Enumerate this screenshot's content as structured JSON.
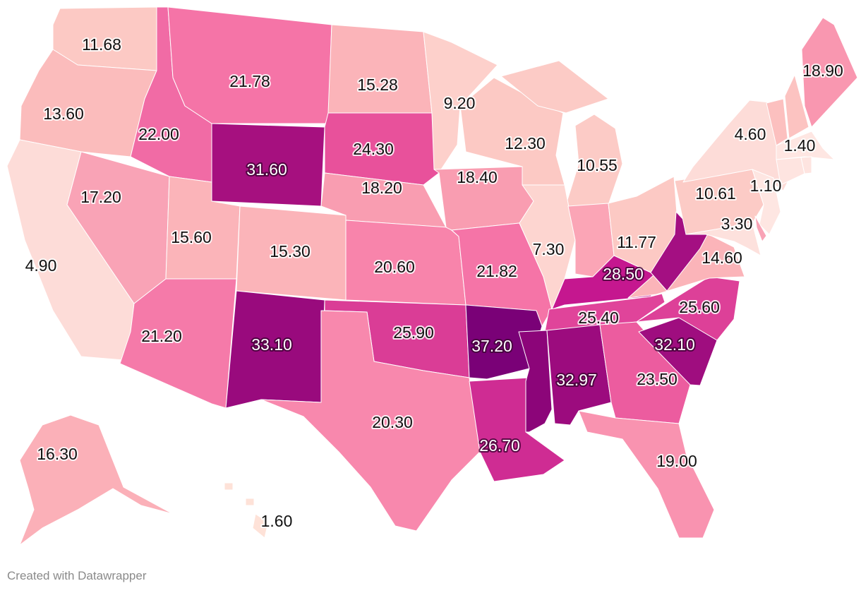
{
  "footer": "Created with Datawrapper",
  "color_scale": [
    "#fde3df",
    "#fcc9c4",
    "#fbb4b9",
    "#f99db1",
    "#f77fab",
    "#e8519b",
    "#c5178f",
    "#a40f82",
    "#7a0177"
  ],
  "states": {
    "WA": {
      "value": "11.68",
      "color": "#fcc9c4"
    },
    "OR": {
      "value": "13.60",
      "color": "#fbbcbc"
    },
    "CA": {
      "value": "4.90",
      "color": "#fddcd8"
    },
    "ID": {
      "value": "22.00",
      "color": "#f16ba5"
    },
    "NV": {
      "value": "17.20",
      "color": "#f9a3b6"
    },
    "MT": {
      "value": "21.78",
      "color": "#f574a7"
    },
    "WY": {
      "value": "31.60",
      "color": "#a6107f"
    },
    "UT": {
      "value": "15.60",
      "color": "#fbb4b9"
    },
    "AZ": {
      "value": "21.20",
      "color": "#f57aa9"
    },
    "CO": {
      "value": "15.30",
      "color": "#fbb4b9"
    },
    "NM": {
      "value": "33.10",
      "color": "#990a7d"
    },
    "ND": {
      "value": "15.28",
      "color": "#fbb4b9"
    },
    "SD": {
      "value": "24.30",
      "color": "#e8519b"
    },
    "NE": {
      "value": "18.20",
      "color": "#f99db1"
    },
    "KS": {
      "value": "20.60",
      "color": "#f884ab"
    },
    "OK": {
      "value": "25.90",
      "color": "#da3d96"
    },
    "TX": {
      "value": "20.30",
      "color": "#f888ad"
    },
    "MN": {
      "value": "9.20",
      "color": "#fdd0cb"
    },
    "IA": {
      "value": "18.40",
      "color": "#f99db1"
    },
    "MO": {
      "value": "21.82",
      "color": "#f574a7"
    },
    "AR": {
      "value": "37.20",
      "color": "#7a0177"
    },
    "LA": {
      "value": "26.70",
      "color": "#cf2c93"
    },
    "WI": {
      "value": "12.30",
      "color": "#fcc9c4"
    },
    "MI": {
      "value": "10.55",
      "color": "#fccbc6"
    },
    "IL": {
      "value": "7.30",
      "color": "#fdd5d0"
    },
    "IN": {
      "value": "",
      "color": "#fba5b6"
    },
    "OH": {
      "value": "11.77",
      "color": "#fcc9c4"
    },
    "KY": {
      "value": "28.50",
      "color": "#c5178f"
    },
    "TN": {
      "value": "25.40",
      "color": "#e0449a"
    },
    "MS": {
      "value": "",
      "color": "#8c0579"
    },
    "AL": {
      "value": "32.97",
      "color": "#9c0b7e"
    },
    "GA": {
      "value": "23.50",
      "color": "#ec5c9f"
    },
    "FL": {
      "value": "19.00",
      "color": "#f993b0"
    },
    "SC": {
      "value": "32.10",
      "color": "#9f0d7f"
    },
    "NC": {
      "value": "25.60",
      "color": "#dd4098"
    },
    "VA": {
      "value": "14.60",
      "color": "#fbb4b9"
    },
    "WV": {
      "value": "",
      "color": "#a40f82"
    },
    "PA": {
      "value": "10.61",
      "color": "#fccbc6"
    },
    "NY": {
      "value": "4.60",
      "color": "#fddcd8"
    },
    "NJ": {
      "value": "1.10",
      "color": "#fee6e2"
    },
    "MD": {
      "value": "3.30",
      "color": "#fde1dd"
    },
    "DE": {
      "value": "",
      "color": "#f9a3b6"
    },
    "VT": {
      "value": "",
      "color": "#fcc0bf"
    },
    "NH": {
      "value": "",
      "color": "#fcc3c1"
    },
    "ME": {
      "value": "18.90",
      "color": "#f997b0"
    },
    "MA": {
      "value": "1.40",
      "color": "#fee6e2"
    },
    "CT": {
      "value": "",
      "color": "#fee4e0"
    },
    "RI": {
      "value": "",
      "color": "#fee4e0"
    },
    "AK": {
      "value": "16.30",
      "color": "#fbb0b8"
    },
    "HI": {
      "value": "1.60",
      "color": "#fee2d8"
    }
  }
}
